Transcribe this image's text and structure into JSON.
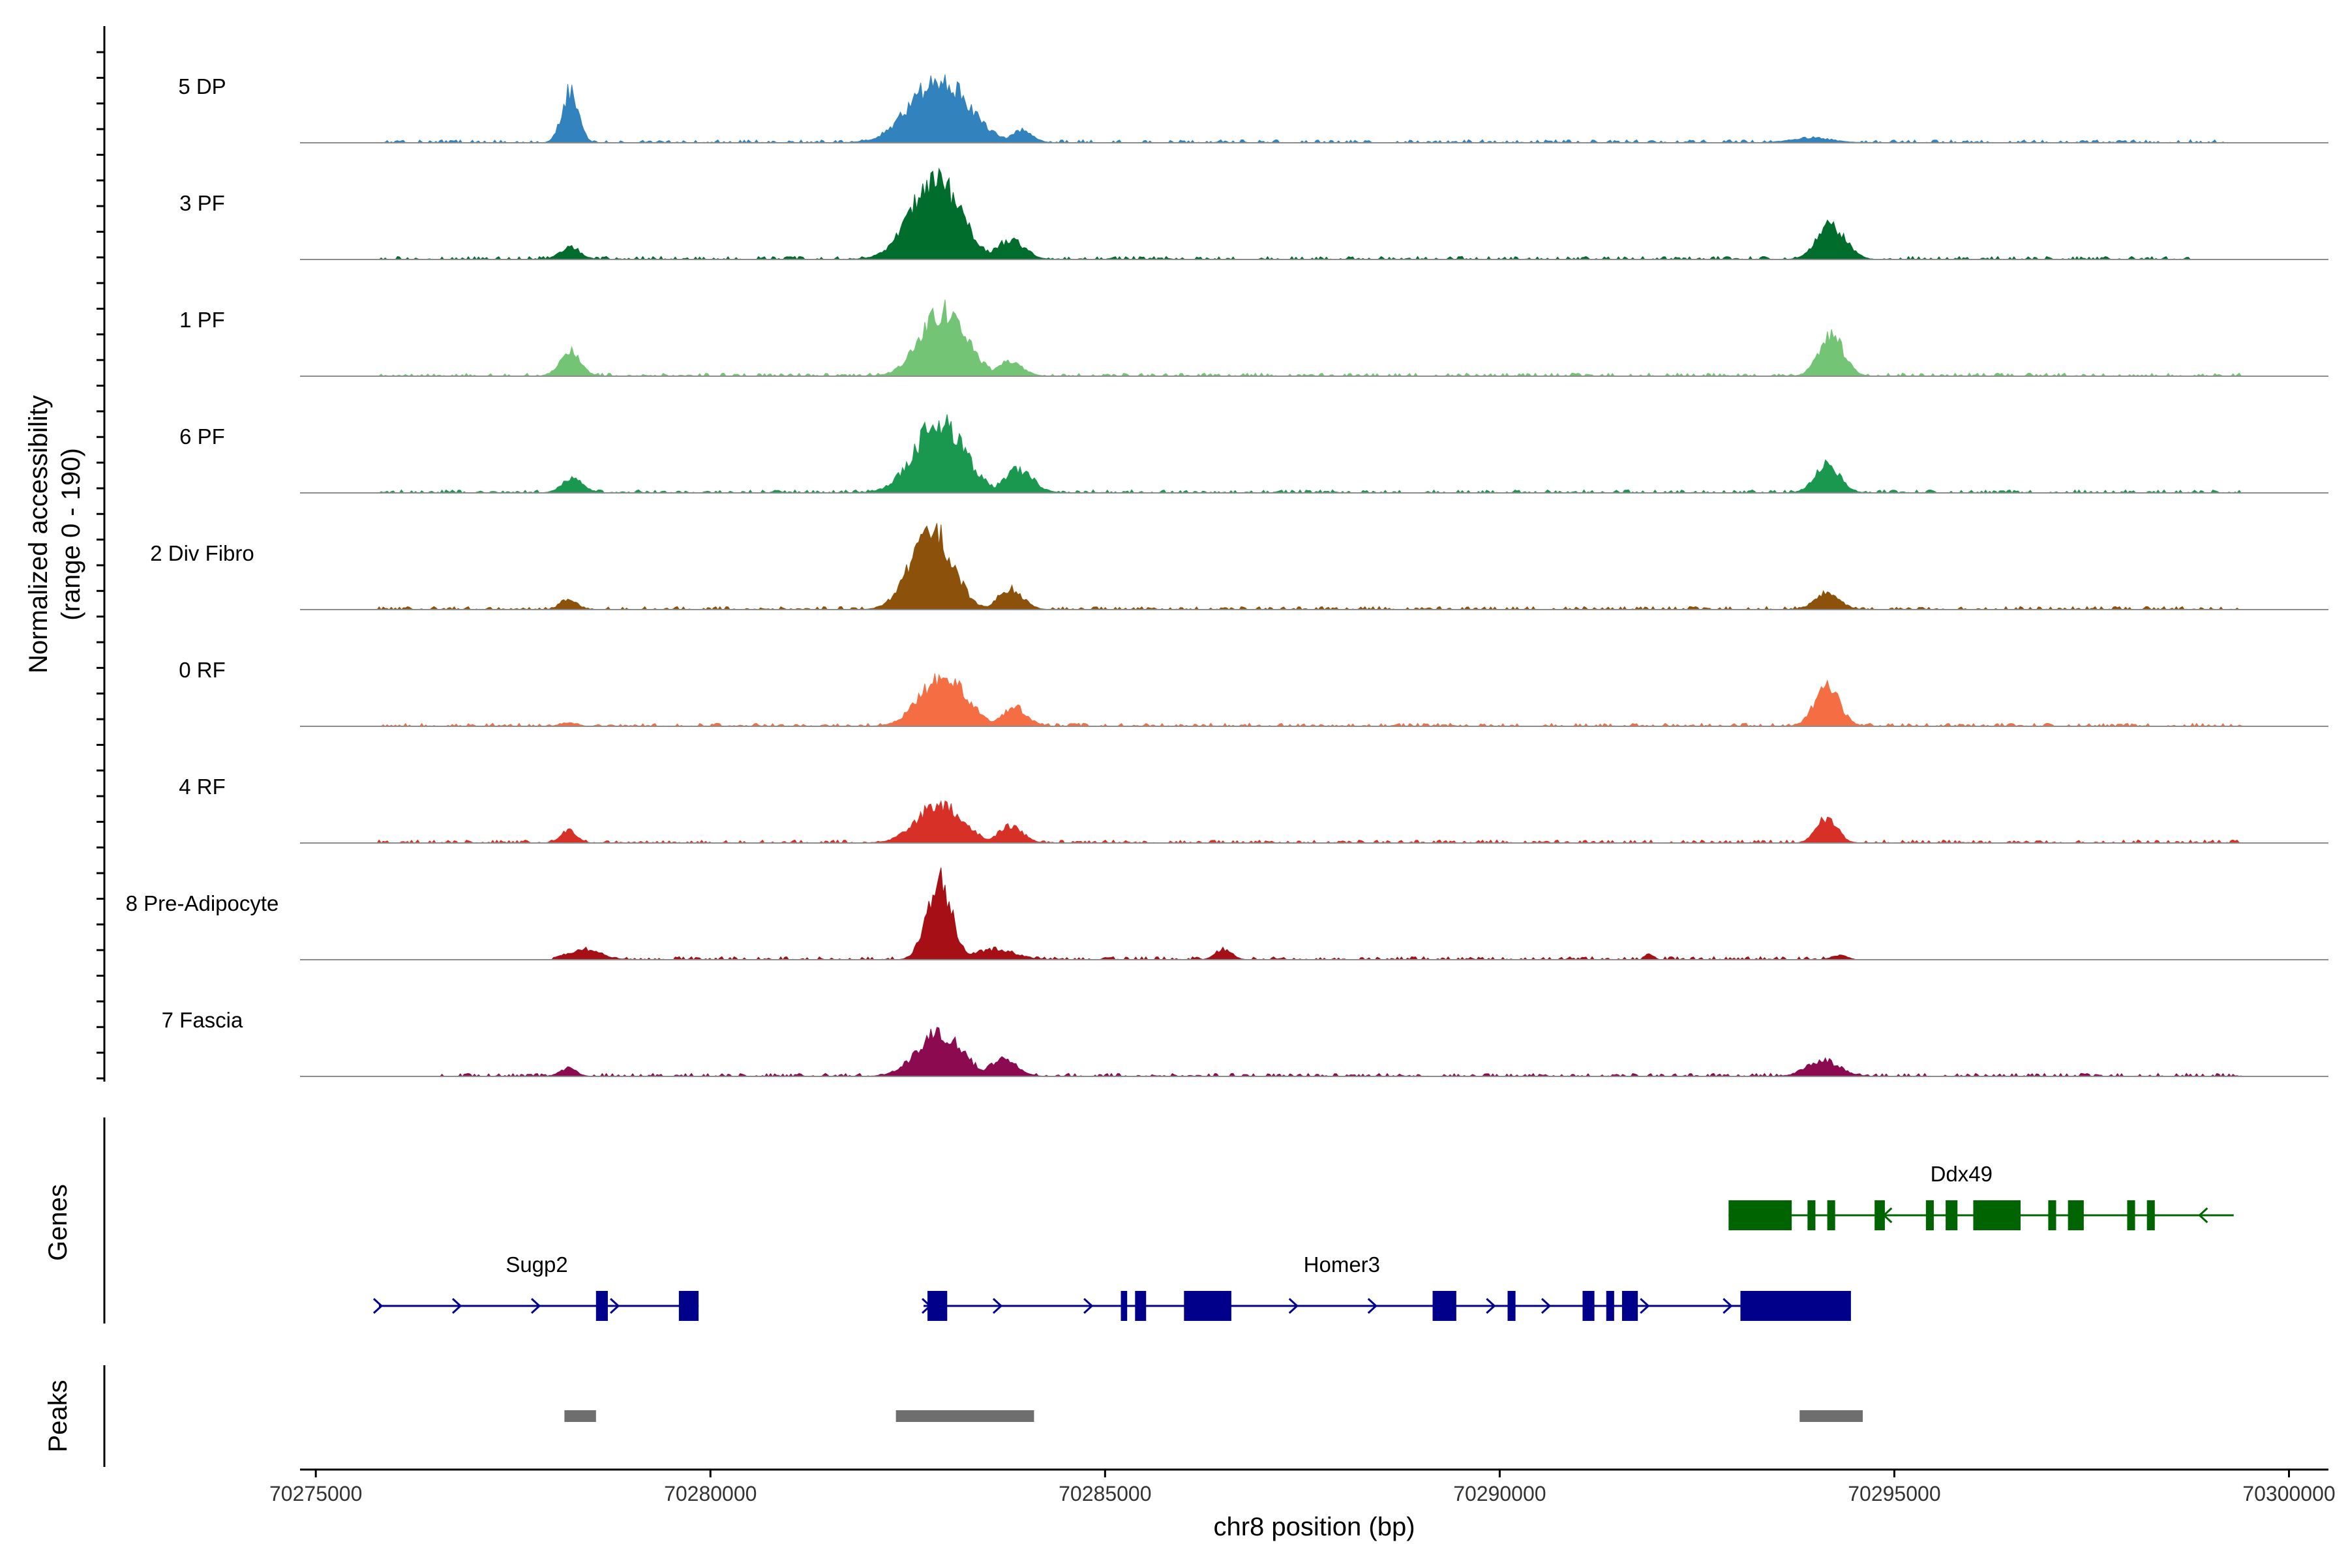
{
  "chart_data": {
    "type": "area",
    "title": "",
    "ylabel_line1": "Normalized accessibility",
    "ylabel_line2": "(range 0 - 190)",
    "ylim": [
      0,
      190
    ],
    "xlabel": "chr8 position (bp)",
    "xlim": [
      70274800,
      70300500
    ],
    "x_ticks": [
      70275000,
      70280000,
      70285000,
      70290000,
      70295000,
      70300000
    ],
    "x_tick_labels": [
      "70275000",
      "70280000",
      "70285000",
      "70290000",
      "70295000",
      "70300000"
    ],
    "tracks": [
      {
        "name": "5 DP",
        "color": "#3182BD",
        "peaks": [
          [
            70278220,
            4,
            120
          ],
          [
            70282900,
            14,
            150
          ],
          [
            70283950,
            5,
            30
          ],
          [
            70293950,
            10,
            12
          ]
        ],
        "range": [
          70275800,
          70299200
        ]
      },
      {
        "name": "3 PF",
        "color": "#006D2C",
        "peaks": [
          [
            70278220,
            5,
            30
          ],
          [
            70282850,
            12,
            190
          ],
          [
            70283800,
            7,
            45
          ],
          [
            70294200,
            7,
            80
          ]
        ],
        "range": [
          70275800,
          70298800
        ]
      },
      {
        "name": "1 PF",
        "color": "#74C476",
        "peaks": [
          [
            70278220,
            5,
            60
          ],
          [
            70282950,
            11,
            155
          ],
          [
            70283800,
            6,
            35
          ],
          [
            70294200,
            6,
            95
          ]
        ],
        "range": [
          70275800,
          70299400
        ]
      },
      {
        "name": "6 PF",
        "color": "#1A9850",
        "peaks": [
          [
            70278250,
            5,
            35
          ],
          [
            70282900,
            12,
            165
          ],
          [
            70283900,
            7,
            55
          ],
          [
            70294150,
            6,
            70
          ]
        ],
        "range": [
          70275800,
          70299400
        ]
      },
      {
        "name": "2 Div Fibro",
        "color": "#8C510A",
        "peaks": [
          [
            70278200,
            4,
            25
          ],
          [
            70282800,
            10,
            190
          ],
          [
            70283800,
            6,
            50
          ],
          [
            70294150,
            6,
            40
          ]
        ],
        "range": [
          70275800,
          70299400
        ]
      },
      {
        "name": "0 RF",
        "color": "#F46D43",
        "peaks": [
          [
            70278200,
            4,
            8
          ],
          [
            70282950,
            11,
            120
          ],
          [
            70283850,
            6,
            45
          ],
          [
            70294150,
            6,
            95
          ]
        ],
        "range": [
          70275800,
          70299400
        ]
      },
      {
        "name": "4 RF",
        "color": "#D73027",
        "peaks": [
          [
            70278200,
            4,
            30
          ],
          [
            70282900,
            11,
            90
          ],
          [
            70283800,
            6,
            40
          ],
          [
            70294150,
            5,
            60
          ]
        ],
        "range": [
          70275800,
          70299400
        ]
      },
      {
        "name": "8 Pre-Adipocyte",
        "color": "#A50F15",
        "peaks": [
          [
            70278400,
            8,
            25
          ],
          [
            70282900,
            6,
            185
          ],
          [
            70283600,
            10,
            25
          ],
          [
            70286500,
            4,
            25
          ],
          [
            70291900,
            2,
            15
          ],
          [
            70294300,
            4,
            10
          ]
        ],
        "range": [
          70278000,
          70294500
        ]
      },
      {
        "name": "7 Fascia",
        "color": "#8B0A50",
        "peaks": [
          [
            70278200,
            4,
            20
          ],
          [
            70282900,
            11,
            100
          ],
          [
            70283700,
            7,
            40
          ],
          [
            70294100,
            8,
            38
          ]
        ],
        "range": [
          70276500,
          70299400
        ]
      }
    ],
    "genes_panel_label": "Genes",
    "genes": [
      {
        "name": "Sugp2",
        "strand": "+",
        "color": "#00008B",
        "row": 2,
        "start": 70275800,
        "end": 70279850,
        "label_x": 70277800,
        "exons": [
          [
            70278550,
            70278700
          ],
          [
            70279600,
            70279850
          ]
        ],
        "arrows": [
          70275800,
          70276800,
          70277800,
          70278800
        ]
      },
      {
        "name": "Homer3",
        "strand": "+",
        "color": "#00008B",
        "row": 2,
        "start": 70282700,
        "end": 70294300,
        "label_x": 70288000,
        "exons": [
          [
            70282750,
            70283000
          ],
          [
            70285200,
            70285280
          ],
          [
            70285380,
            70285520
          ],
          [
            70286000,
            70286600
          ],
          [
            70289150,
            70289450
          ],
          [
            70290100,
            70290200
          ],
          [
            70291050,
            70291200
          ],
          [
            70291350,
            70291450
          ],
          [
            70291550,
            70291750
          ],
          [
            70293050,
            70294450
          ]
        ],
        "arrows": [
          70282750,
          70283650,
          70284800,
          70287400,
          70288400,
          70289900,
          70290600,
          70291850,
          70292900
        ]
      },
      {
        "name": "Ddx49",
        "strand": "-",
        "color": "#006400",
        "row": 1,
        "start": 70292900,
        "end": 70299300,
        "label_x": 70295850,
        "exons": [
          [
            70292900,
            70293700
          ],
          [
            70293900,
            70294000
          ],
          [
            70294150,
            70294250
          ],
          [
            70294750,
            70294880
          ],
          [
            70295400,
            70295500
          ],
          [
            70295650,
            70295800
          ],
          [
            70296000,
            70296600
          ],
          [
            70296950,
            70297050
          ],
          [
            70297200,
            70297400
          ],
          [
            70297950,
            70298050
          ],
          [
            70298200,
            70298300
          ]
        ],
        "arrows": [
          70294900,
          70298900
        ]
      }
    ],
    "peaks_panel_label": "Peaks",
    "peak_regions": [
      [
        70278150,
        70278550
      ],
      [
        70282350,
        70284100
      ],
      [
        70293800,
        70294600
      ]
    ],
    "peak_color": "#6E6E6E"
  }
}
